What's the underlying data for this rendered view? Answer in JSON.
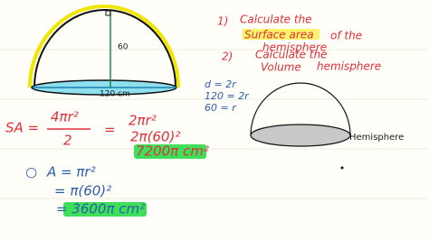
{
  "task1": {
    "number": "1)",
    "lines": [
      "Calculate the",
      "Surface area",
      "of the",
      "hemisphere"
    ]
  },
  "task2": {
    "number": "2)",
    "lines": [
      "Calculate the",
      "Volume",
      "hemisphere"
    ]
  },
  "diagram1": {
    "height_label": "60",
    "diameter_label": "120 cm"
  },
  "radius_work": [
    "d = 2r",
    "120 = 2r",
    "60 = r"
  ],
  "surface_area": {
    "left": "SA =",
    "numerator": "4πr²",
    "denominator": "2",
    "equals": "=",
    "steps": [
      "2πr²",
      "2π(60)²",
      "7200π cm²"
    ]
  },
  "area": {
    "marker": "○",
    "steps": [
      "A = πr²",
      "= π(60)²",
      "= 3600π cm²"
    ]
  },
  "diagram2": {
    "label": "Hemisphere"
  }
}
